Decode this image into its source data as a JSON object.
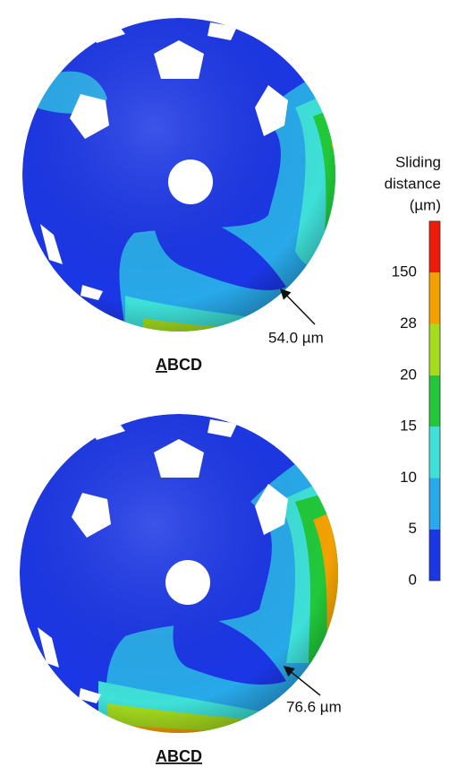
{
  "panels": [
    {
      "label": [
        {
          "text": "A",
          "underline": true
        },
        {
          "text": "BCD",
          "underline": false
        }
      ],
      "annotation": "54.0 µm"
    },
    {
      "label": [
        {
          "text": "ABCD",
          "underline": true
        }
      ],
      "annotation": "76.6 µm"
    }
  ],
  "colorbar": {
    "title": [
      "Sliding",
      "distance",
      "(µm)"
    ],
    "ticks": [
      0,
      5,
      10,
      15,
      20,
      28,
      150
    ],
    "colors": [
      "#1b36e6",
      "#28a9ea",
      "#3ee0d8",
      "#22c83a",
      "#a6dc1e",
      "#f2a100",
      "#ee1a0a"
    ]
  }
}
